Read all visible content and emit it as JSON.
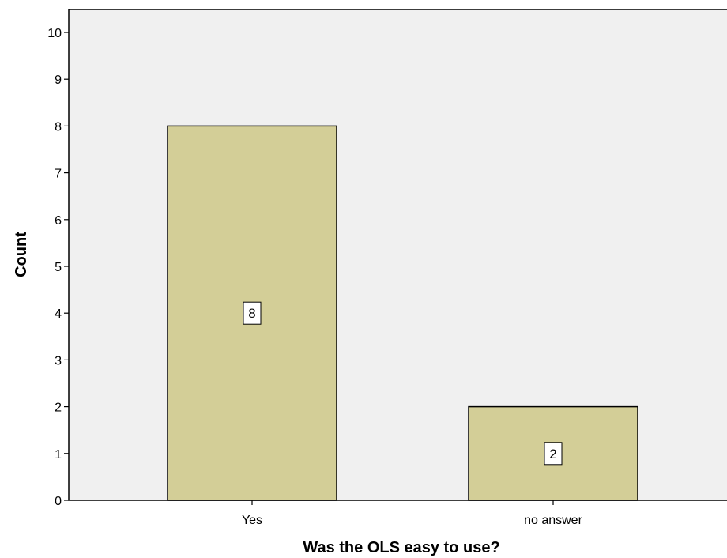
{
  "chart_data": {
    "type": "bar",
    "categories": [
      "Yes",
      "no answer"
    ],
    "values": [
      8,
      2
    ],
    "data_labels": [
      "8",
      "2"
    ],
    "xlabel": "Was the OLS easy to use?",
    "ylabel": "Count",
    "ylim": [
      0,
      10.5
    ],
    "yticks": [
      0,
      1,
      2,
      3,
      4,
      5,
      6,
      7,
      8,
      9,
      10
    ],
    "grid": false,
    "colors": {
      "plot_background": "#f0f0f0",
      "bar_fill": "#d3ce97",
      "bar_stroke": "#000000",
      "label_box": "#ffffff"
    }
  }
}
